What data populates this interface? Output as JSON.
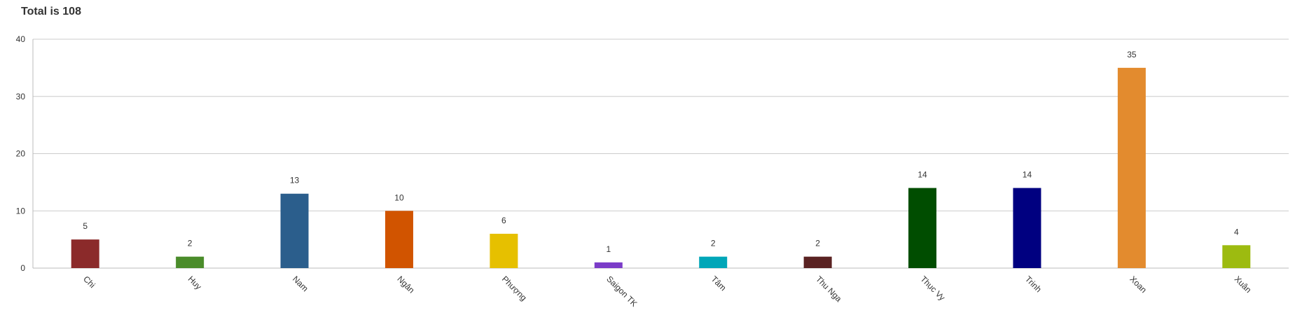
{
  "chart_data": {
    "type": "bar",
    "title": "Total is 108",
    "categories": [
      "Chi",
      "Huy",
      "Nam",
      "Ngân",
      "Phượng",
      "Saigon TK",
      "Tâm",
      "Thu Nga",
      "Thục Vy",
      "Trinh",
      "Xoan",
      "Xuân"
    ],
    "values": [
      5,
      2,
      13,
      10,
      6,
      1,
      2,
      2,
      14,
      14,
      35,
      4
    ],
    "colors": [
      "#8b2a2a",
      "#4a8c2a",
      "#2b5e8c",
      "#d15400",
      "#e6c000",
      "#7b3cc8",
      "#00a6b8",
      "#5a2222",
      "#004d00",
      "#000080",
      "#e38b2e",
      "#9dbb10"
    ],
    "ylim": [
      0,
      40
    ],
    "yticks": [
      0,
      10,
      20,
      30,
      40
    ],
    "grid": true,
    "xlabel": "",
    "ylabel": ""
  }
}
